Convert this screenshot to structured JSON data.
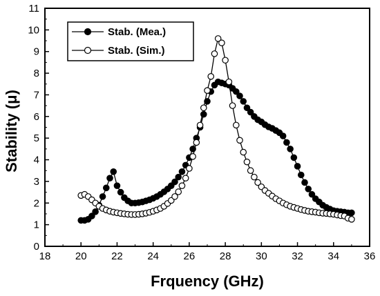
{
  "chart_data": {
    "type": "line",
    "xlabel": "Frquency (GHz)",
    "ylabel": "Stability (μ)",
    "xlim": [
      18,
      36
    ],
    "ylim": [
      0,
      11
    ],
    "xticks": [
      18,
      20,
      22,
      24,
      26,
      28,
      30,
      32,
      34,
      36
    ],
    "yticks": [
      0,
      1,
      2,
      3,
      4,
      5,
      6,
      7,
      8,
      9,
      10,
      11
    ],
    "grid": false,
    "legend_position": "top-left",
    "series": [
      {
        "name": "Stab. (Mea.)",
        "marker": "filled-circle",
        "color": "#000000",
        "x": [
          20.0,
          20.2,
          20.4,
          20.6,
          20.8,
          21.0,
          21.2,
          21.4,
          21.6,
          21.8,
          22.0,
          22.2,
          22.4,
          22.6,
          22.8,
          23.0,
          23.2,
          23.4,
          23.6,
          23.8,
          24.0,
          24.2,
          24.4,
          24.6,
          24.8,
          25.0,
          25.2,
          25.4,
          25.6,
          25.8,
          26.0,
          26.2,
          26.4,
          26.6,
          26.8,
          27.0,
          27.2,
          27.4,
          27.6,
          27.8,
          28.0,
          28.2,
          28.4,
          28.6,
          28.8,
          29.0,
          29.2,
          29.4,
          29.6,
          29.8,
          30.0,
          30.2,
          30.4,
          30.6,
          30.8,
          31.0,
          31.2,
          31.4,
          31.6,
          31.8,
          32.0,
          32.2,
          32.4,
          32.6,
          32.8,
          33.0,
          33.2,
          33.4,
          33.6,
          33.8,
          34.0,
          34.2,
          34.4,
          34.6,
          34.8,
          35.0
        ],
        "y": [
          1.2,
          1.2,
          1.25,
          1.4,
          1.6,
          1.9,
          2.3,
          2.7,
          3.15,
          3.45,
          2.8,
          2.5,
          2.25,
          2.1,
          2.0,
          2.0,
          2.02,
          2.05,
          2.1,
          2.15,
          2.22,
          2.3,
          2.4,
          2.52,
          2.65,
          2.8,
          2.98,
          3.2,
          3.45,
          3.75,
          4.1,
          4.5,
          5.0,
          5.5,
          6.1,
          6.7,
          7.15,
          7.45,
          7.6,
          7.55,
          7.5,
          7.45,
          7.3,
          7.15,
          6.95,
          6.7,
          6.4,
          6.2,
          6.0,
          5.85,
          5.75,
          5.62,
          5.52,
          5.45,
          5.35,
          5.25,
          5.1,
          4.8,
          4.5,
          4.1,
          3.7,
          3.3,
          2.95,
          2.65,
          2.4,
          2.2,
          2.05,
          1.9,
          1.8,
          1.72,
          1.65,
          1.62,
          1.6,
          1.58,
          1.55,
          1.55
        ]
      },
      {
        "name": "Stab. (Sim.)",
        "marker": "open-circle",
        "color": "#000000",
        "x": [
          20.0,
          20.2,
          20.4,
          20.6,
          20.8,
          21.0,
          21.2,
          21.4,
          21.6,
          21.8,
          22.0,
          22.2,
          22.4,
          22.6,
          22.8,
          23.0,
          23.2,
          23.4,
          23.6,
          23.8,
          24.0,
          24.2,
          24.4,
          24.6,
          24.8,
          25.0,
          25.2,
          25.4,
          25.6,
          25.8,
          26.0,
          26.2,
          26.4,
          26.6,
          26.8,
          27.0,
          27.2,
          27.4,
          27.6,
          27.8,
          28.0,
          28.2,
          28.4,
          28.6,
          28.8,
          29.0,
          29.2,
          29.4,
          29.6,
          29.8,
          30.0,
          30.2,
          30.4,
          30.6,
          30.8,
          31.0,
          31.2,
          31.4,
          31.6,
          31.8,
          32.0,
          32.2,
          32.4,
          32.6,
          32.8,
          33.0,
          33.2,
          33.4,
          33.6,
          33.8,
          34.0,
          34.2,
          34.4,
          34.6,
          34.8,
          35.0
        ],
        "y": [
          2.35,
          2.4,
          2.3,
          2.15,
          2.0,
          1.85,
          1.75,
          1.68,
          1.62,
          1.58,
          1.55,
          1.52,
          1.5,
          1.48,
          1.47,
          1.47,
          1.48,
          1.5,
          1.53,
          1.57,
          1.62,
          1.68,
          1.75,
          1.85,
          1.98,
          2.12,
          2.3,
          2.52,
          2.8,
          3.15,
          3.6,
          4.15,
          4.8,
          5.6,
          6.4,
          7.2,
          7.85,
          8.9,
          9.6,
          9.4,
          8.6,
          7.6,
          6.5,
          5.6,
          4.9,
          4.35,
          3.9,
          3.5,
          3.2,
          2.95,
          2.75,
          2.58,
          2.45,
          2.32,
          2.2,
          2.1,
          2.0,
          1.92,
          1.85,
          1.8,
          1.75,
          1.7,
          1.66,
          1.62,
          1.6,
          1.58,
          1.55,
          1.53,
          1.52,
          1.5,
          1.48,
          1.45,
          1.42,
          1.4,
          1.3,
          1.25
        ]
      }
    ]
  }
}
